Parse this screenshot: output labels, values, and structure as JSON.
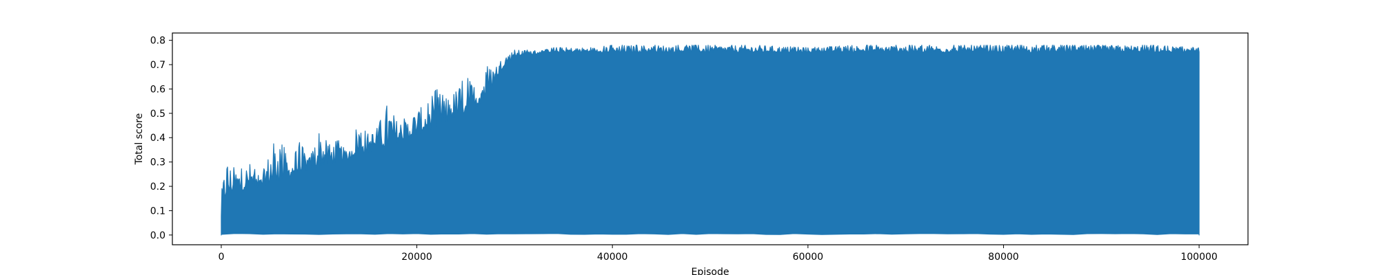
{
  "chart_data": {
    "type": "line",
    "title": "",
    "xlabel": "Episode",
    "ylabel": "Total score",
    "xlim": [
      -5000,
      105000
    ],
    "ylim": [
      -0.04,
      0.83
    ],
    "xticks": [
      0,
      20000,
      40000,
      60000,
      80000,
      100000
    ],
    "xtick_labels": [
      "0",
      "20000",
      "40000",
      "60000",
      "80000",
      "100000"
    ],
    "yticks": [
      0.0,
      0.1,
      0.2,
      0.3,
      0.4,
      0.5,
      0.6,
      0.7,
      0.8
    ],
    "ytick_labels": [
      "0.0",
      "0.1",
      "0.2",
      "0.3",
      "0.4",
      "0.5",
      "0.6",
      "0.7",
      "0.8"
    ],
    "grid": false,
    "legend": "none",
    "series_color": "#1f77b4",
    "series": [
      {
        "episodes": [
          0,
          50000,
          100000
        ],
        "summary_note": "",
        "envelope": {
          "x": [
            0,
            200,
            500,
            1000,
            2000,
            3000,
            4000,
            5000,
            6000,
            7000,
            8000,
            9000,
            10000,
            11000,
            12000,
            13000,
            14000,
            15000,
            16000,
            17000,
            18000,
            19000,
            20000,
            21000,
            22000,
            23000,
            24000,
            25000,
            26000,
            27000,
            28000,
            29000,
            30000,
            31000,
            32000,
            33000,
            34000,
            35000,
            36000,
            38000,
            40000,
            45000,
            50000,
            55000,
            60000,
            65000,
            70000,
            75000,
            80000,
            85000,
            90000,
            95000,
            100000
          ],
          "upper": [
            0.17,
            0.23,
            0.33,
            0.28,
            0.27,
            0.3,
            0.23,
            0.35,
            0.42,
            0.28,
            0.38,
            0.32,
            0.44,
            0.37,
            0.39,
            0.33,
            0.48,
            0.42,
            0.44,
            0.55,
            0.47,
            0.48,
            0.52,
            0.53,
            0.6,
            0.56,
            0.6,
            0.65,
            0.62,
            0.69,
            0.7,
            0.74,
            0.76,
            0.76,
            0.76,
            0.76,
            0.77,
            0.77,
            0.77,
            0.77,
            0.78,
            0.78,
            0.78,
            0.78,
            0.77,
            0.78,
            0.78,
            0.78,
            0.78,
            0.78,
            0.78,
            0.78,
            0.77
          ],
          "base": [
            0.06,
            0.12,
            0.16,
            0.17,
            0.18,
            0.19,
            0.2,
            0.21,
            0.22,
            0.24,
            0.25,
            0.27,
            0.28,
            0.29,
            0.3,
            0.31,
            0.33,
            0.34,
            0.35,
            0.36,
            0.38,
            0.39,
            0.41,
            0.43,
            0.44,
            0.46,
            0.48,
            0.5,
            0.52,
            0.56,
            0.63,
            0.7,
            0.73,
            0.74,
            0.74,
            0.75,
            0.75,
            0.75,
            0.75,
            0.75,
            0.75,
            0.75,
            0.75,
            0.75,
            0.75,
            0.75,
            0.75,
            0.75,
            0.75,
            0.75,
            0.75,
            0.75,
            0.75
          ],
          "lower": 0.0
        }
      }
    ]
  }
}
